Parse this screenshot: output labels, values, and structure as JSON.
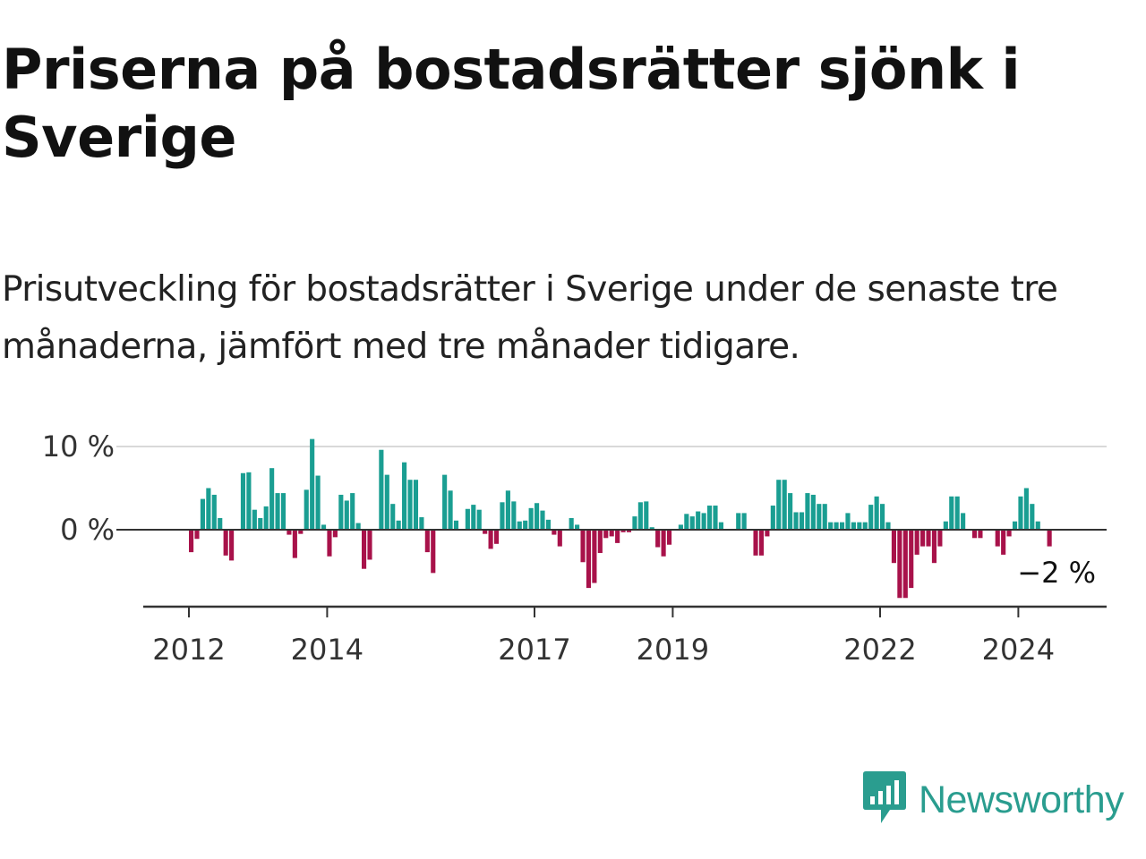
{
  "title": "Priserna på bostadsrätter sjönk i Sverige",
  "subtitle": "Prisutveckling för bostadsrätter i Sverige under de senaste tre månaderna, jämfört med tre månader tidigare.",
  "brand": {
    "name": "Newsworthy",
    "icon": "newsworthy-logo-icon",
    "color": "#2a9d8f"
  },
  "chart_data": {
    "type": "bar",
    "unit": "%",
    "ylim": [
      -9.5,
      10.5
    ],
    "yticks": [
      {
        "value": 10,
        "label": "10 %"
      },
      {
        "value": 0,
        "label": "0 %"
      }
    ],
    "xticks": [
      {
        "year": 2012,
        "label": "2012"
      },
      {
        "year": 2014,
        "label": "2014"
      },
      {
        "year": 2017,
        "label": "2017"
      },
      {
        "year": 2019,
        "label": "2019"
      },
      {
        "year": 2022,
        "label": "2022"
      },
      {
        "year": 2024,
        "label": "2024"
      }
    ],
    "x_start": "2012-01",
    "grid": true,
    "colors": {
      "positive": "#1a9e92",
      "negative": "#a8124a"
    },
    "annotation": {
      "label": "−2 %",
      "value": -2
    },
    "values": [
      -2.7,
      -1.1,
      3.7,
      5.0,
      4.2,
      1.4,
      -3.1,
      -3.7,
      0.0,
      6.8,
      6.9,
      2.4,
      1.4,
      2.8,
      7.4,
      4.4,
      4.4,
      -0.6,
      -3.4,
      -0.5,
      4.8,
      10.9,
      6.5,
      0.6,
      -3.2,
      -0.9,
      4.2,
      3.5,
      4.4,
      0.8,
      -4.7,
      -3.6,
      0.0,
      9.6,
      6.6,
      3.1,
      1.1,
      8.1,
      6.0,
      6.0,
      1.5,
      -2.7,
      -5.2,
      0.0,
      6.6,
      4.7,
      1.1,
      0.0,
      2.5,
      3.0,
      2.4,
      -0.5,
      -2.3,
      -1.7,
      3.3,
      4.7,
      3.4,
      1.0,
      1.1,
      2.6,
      3.2,
      2.3,
      1.2,
      -0.6,
      -2.0,
      0.0,
      1.4,
      0.6,
      -3.9,
      -7.0,
      -6.4,
      -2.8,
      -1.0,
      -0.8,
      -1.6,
      -0.3,
      -0.3,
      1.6,
      3.3,
      3.4,
      0.3,
      -2.1,
      -3.2,
      -1.8,
      0.0,
      0.6,
      1.9,
      1.6,
      2.2,
      2.0,
      2.9,
      2.9,
      0.9,
      0.0,
      0.0,
      2.0,
      2.0,
      0.0,
      -3.1,
      -3.1,
      -0.8,
      2.9,
      6.0,
      6.0,
      4.4,
      2.1,
      2.1,
      4.4,
      4.2,
      3.1,
      3.1,
      0.9,
      0.9,
      0.9,
      2.0,
      0.9,
      0.9,
      0.9,
      3.0,
      4.0,
      3.1,
      0.9,
      -4.0,
      -8.2,
      -8.2,
      -7.0,
      -3.0,
      -2.0,
      -2.0,
      -4.0,
      -2.0,
      1.0,
      4.0,
      4.0,
      2.0,
      0.0,
      -1.0,
      -1.0,
      0.0,
      0.0,
      -2.0,
      -3.0,
      -0.8,
      1.0,
      4.0,
      5.0,
      3.1,
      1.0,
      0.0,
      -2.0
    ]
  }
}
